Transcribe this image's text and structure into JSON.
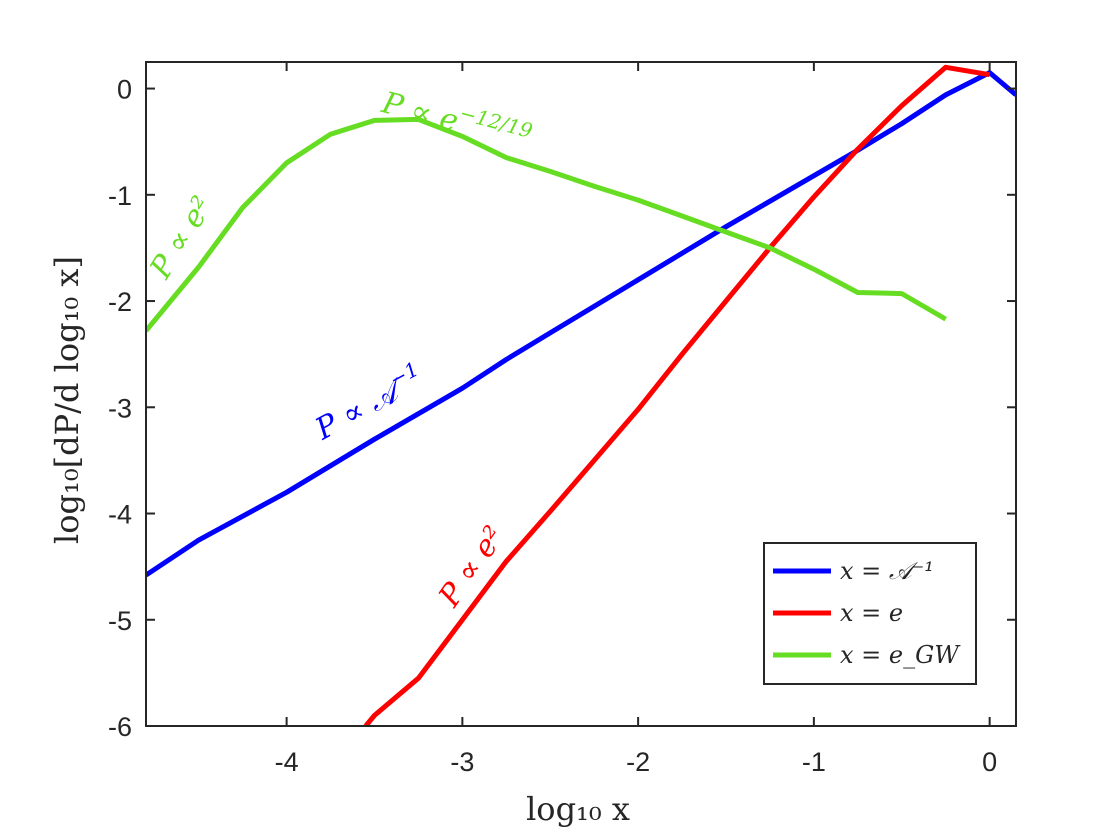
{
  "chart_data": {
    "type": "line",
    "xlabel": "log₁₀ x",
    "ylabel": "log₁₀[dP/d log₁₀ x]",
    "xlim": [
      -4.8,
      0.15
    ],
    "ylim": [
      -6,
      0.25
    ],
    "xticks": [
      -4,
      -3,
      -2,
      -1,
      0
    ],
    "yticks": [
      0,
      -1,
      -2,
      -3,
      -4,
      -5,
      -6
    ],
    "xtick_labels": [
      "-4",
      "-3",
      "-2",
      "-1",
      "0"
    ],
    "ytick_labels": [
      "0",
      "-1",
      "-2",
      "-3",
      "-4",
      "-5",
      "-6"
    ],
    "grid": false,
    "legend_position": "bottom-right",
    "series": [
      {
        "name": "x = 𝒜⁻¹",
        "color": "#0000ff",
        "x": [
          -4.8,
          -4.5,
          -4.0,
          -3.5,
          -3.0,
          -2.75,
          -2.5,
          -2.0,
          -1.5,
          -1.0,
          -0.75,
          -0.5,
          -0.25,
          0.0,
          0.15
        ],
        "y": [
          -4.58,
          -4.25,
          -3.8,
          -3.3,
          -2.82,
          -2.55,
          -2.3,
          -1.8,
          -1.3,
          -0.82,
          -0.58,
          -0.33,
          -0.06,
          0.15,
          -0.06
        ]
      },
      {
        "name": "x = e",
        "color": "#ff0000",
        "x": [
          -3.55,
          -3.5,
          -3.25,
          -3.0,
          -2.75,
          -2.5,
          -2.25,
          -2.0,
          -1.75,
          -1.5,
          -1.25,
          -1.0,
          -0.75,
          -0.5,
          -0.25,
          0.0
        ],
        "y": [
          -6.0,
          -5.9,
          -5.55,
          -5.0,
          -4.45,
          -3.98,
          -3.5,
          -3.02,
          -2.5,
          -2.0,
          -1.5,
          -1.02,
          -0.57,
          -0.16,
          0.2,
          0.13
        ]
      },
      {
        "name": "x = e_GW",
        "color": "#66dd22",
        "x": [
          -4.8,
          -4.5,
          -4.25,
          -4.0,
          -3.75,
          -3.5,
          -3.25,
          -3.0,
          -2.75,
          -2.5,
          -2.25,
          -2.0,
          -1.75,
          -1.5,
          -1.25,
          -1.0,
          -0.75,
          -0.5,
          -0.25
        ],
        "y": [
          -2.28,
          -1.68,
          -1.12,
          -0.7,
          -0.43,
          -0.3,
          -0.29,
          -0.45,
          -0.65,
          -0.78,
          -0.92,
          -1.05,
          -1.2,
          -1.35,
          -1.5,
          -1.7,
          -1.92,
          -1.93,
          -2.17
        ]
      }
    ],
    "annotations": [
      {
        "text": "P ∝ e²",
        "color": "#66dd22",
        "x": -4.55,
        "y": -1.45,
        "rotation": -58
      },
      {
        "text": "P ∝ e",
        "sup": "−12/19",
        "color": "#66dd22",
        "x": -3.05,
        "y": -0.4,
        "rotation": 15
      },
      {
        "text": "P ∝ 𝒜",
        "sup": "−1",
        "color": "#0000ff",
        "x": -3.5,
        "y": -3.05,
        "rotation": -28
      },
      {
        "text": "P ∝ e²",
        "color": "#ff0000",
        "x": -2.9,
        "y": -4.55,
        "rotation": -55
      }
    ]
  }
}
